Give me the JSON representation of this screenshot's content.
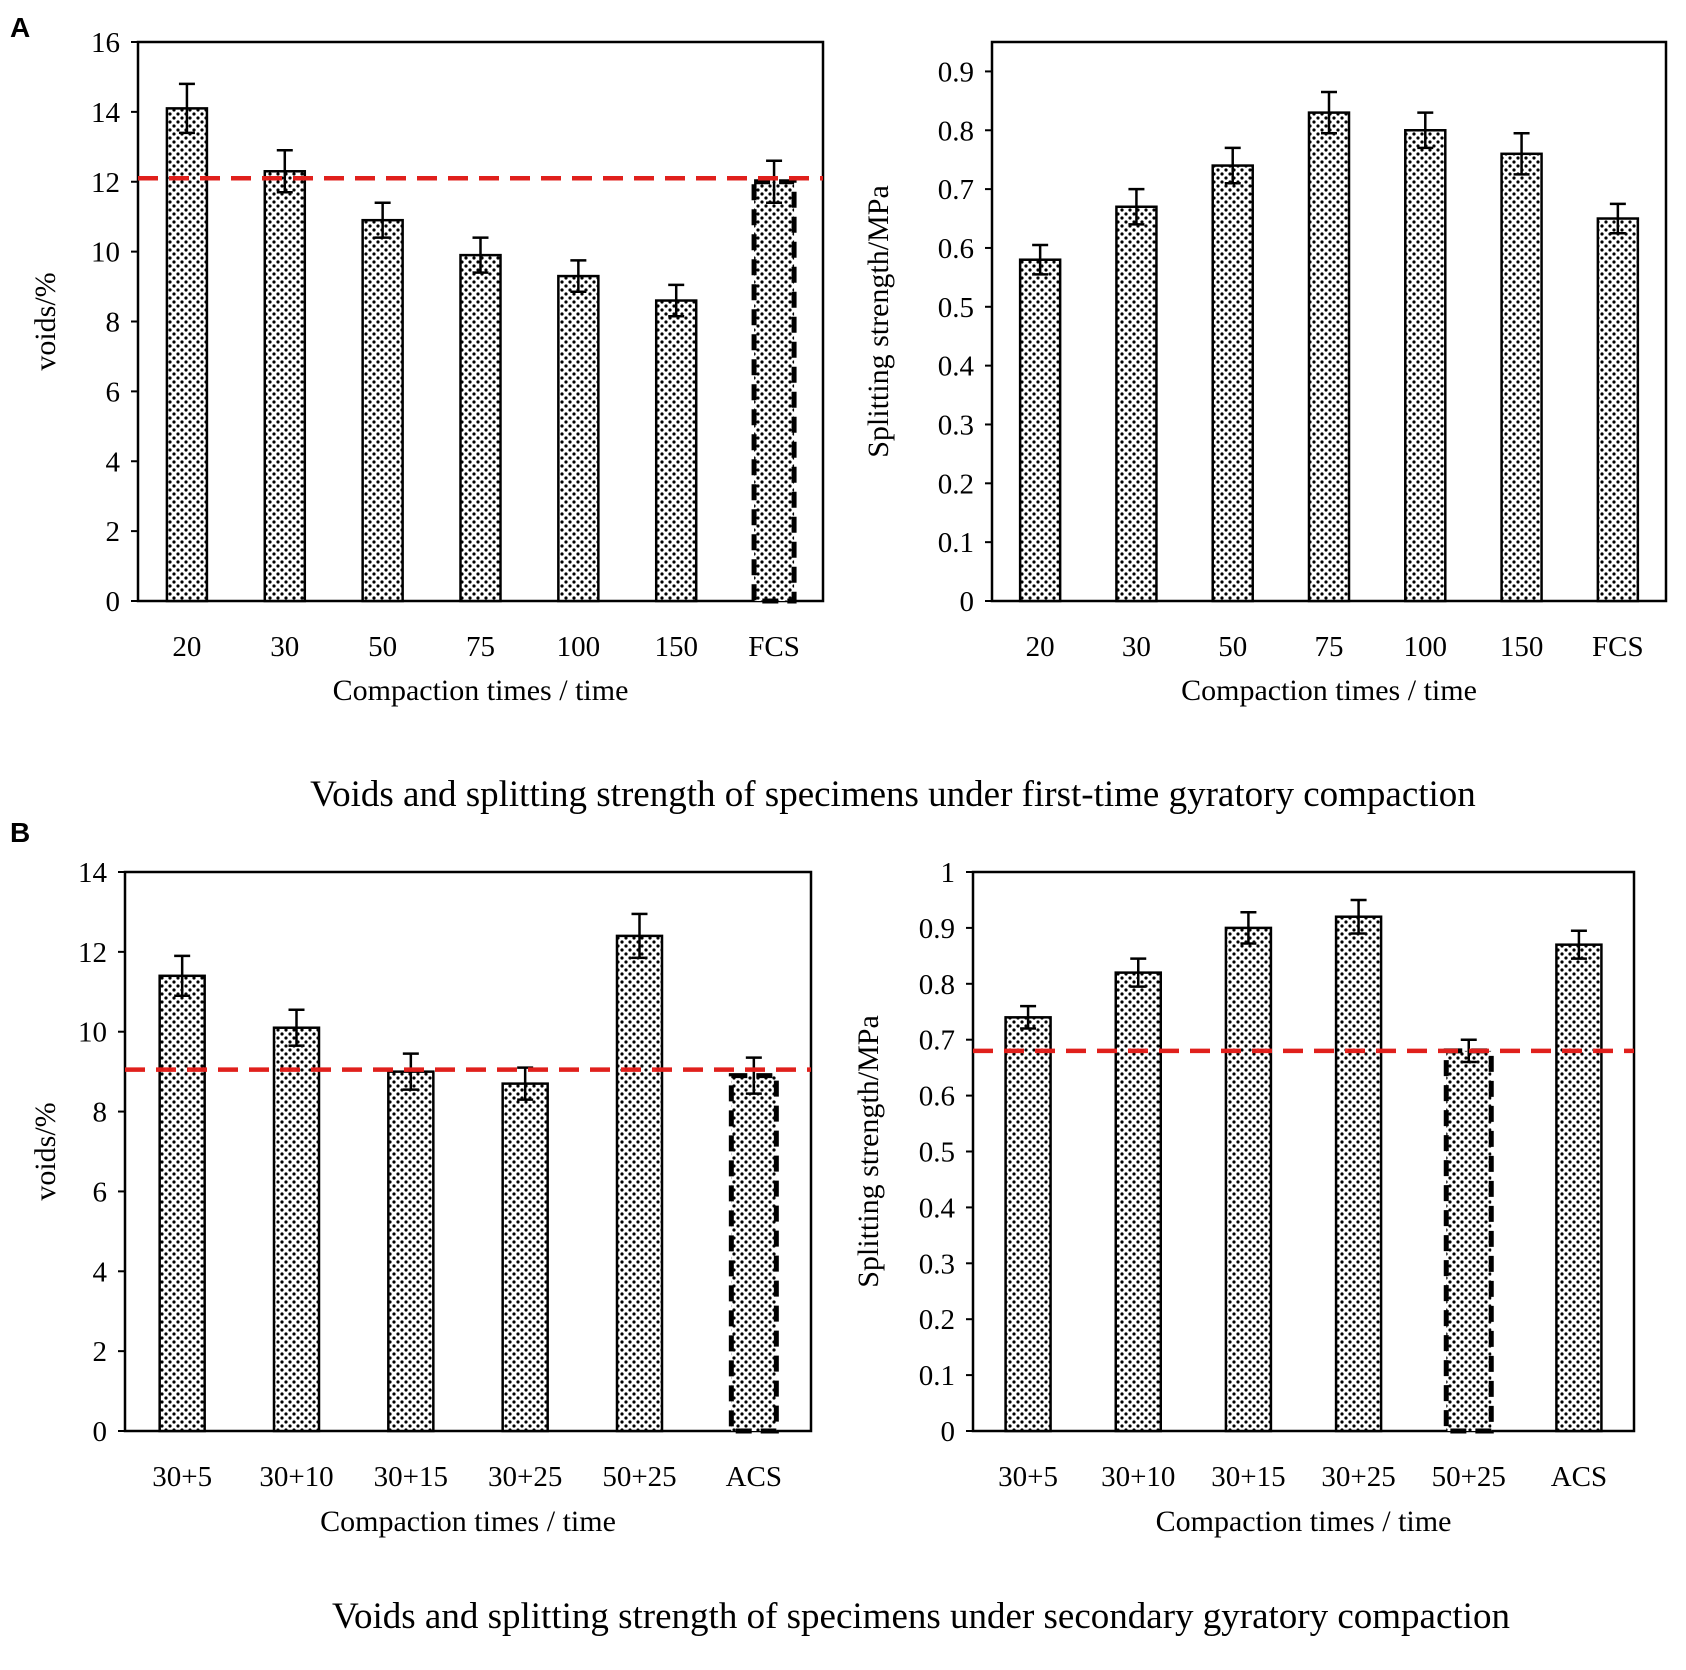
{
  "panels": [
    {
      "label": "A",
      "caption": "Voids and splitting strength of specimens under first-time gyratory compaction"
    },
    {
      "label": "B",
      "caption": "Voids and splitting strength of specimens under secondary gyratory compaction"
    }
  ],
  "colors": {
    "bar_fill": "#ffffff",
    "bar_pattern": "#000000",
    "reference_line": "#e0201c",
    "axis": "#000000"
  },
  "chart_data": [
    {
      "type": "bar",
      "panel": "A",
      "title": "",
      "xlabel": "Compaction times  / time",
      "ylabel": "voids/%",
      "categories": [
        "20",
        "30",
        "50",
        "75",
        "100",
        "150",
        "FCS"
      ],
      "values": [
        14.1,
        12.3,
        10.9,
        9.9,
        9.3,
        8.6,
        12.0
      ],
      "errors": [
        0.7,
        0.6,
        0.5,
        0.5,
        0.45,
        0.45,
        0.6
      ],
      "dashed_bars": [
        "FCS"
      ],
      "reference_line": 12.1,
      "ylim": [
        0,
        16
      ],
      "yticks": [
        "0",
        "2",
        "4",
        "6",
        "8",
        "10",
        "12",
        "14",
        "16"
      ]
    },
    {
      "type": "bar",
      "panel": "A",
      "title": "",
      "xlabel": "Compaction times  / time",
      "ylabel": "Splitting strength/MPa",
      "categories": [
        "20",
        "30",
        "50",
        "75",
        "100",
        "150",
        "FCS"
      ],
      "values": [
        0.58,
        0.67,
        0.74,
        0.83,
        0.8,
        0.76,
        0.65
      ],
      "errors": [
        0.025,
        0.03,
        0.03,
        0.035,
        0.03,
        0.035,
        0.025
      ],
      "dashed_bars": [],
      "reference_line": null,
      "ylim": [
        0,
        0.95
      ],
      "yticks": [
        "0",
        "0.1",
        "0.2",
        "0.3",
        "0.4",
        "0.5",
        "0.6",
        "0.7",
        "0.8",
        "0.9"
      ]
    },
    {
      "type": "bar",
      "panel": "B",
      "title": "",
      "xlabel": "Compaction times  / time",
      "ylabel": "voids/%",
      "categories": [
        "30+5",
        "30+10",
        "30+15",
        "30+25",
        "50+25",
        "ACS"
      ],
      "values": [
        11.4,
        10.1,
        9.0,
        8.7,
        12.4,
        8.9
      ],
      "errors": [
        0.5,
        0.45,
        0.45,
        0.4,
        0.55,
        0.45
      ],
      "dashed_bars": [
        "ACS"
      ],
      "reference_line": 9.05,
      "ylim": [
        0,
        14
      ],
      "yticks": [
        "0",
        "2",
        "4",
        "6",
        "8",
        "10",
        "12",
        "14"
      ]
    },
    {
      "type": "bar",
      "panel": "B",
      "title": "",
      "xlabel": "Compaction times  / time",
      "ylabel": "Splitting  strength/MPa",
      "categories": [
        "30+5",
        "30+10",
        "30+15",
        "30+25",
        "50+25",
        "ACS"
      ],
      "values": [
        0.74,
        0.82,
        0.9,
        0.92,
        0.68,
        0.87
      ],
      "errors": [
        0.02,
        0.025,
        0.028,
        0.03,
        0.02,
        0.025
      ],
      "dashed_bars": [
        "50+25"
      ],
      "reference_line": 0.68,
      "ylim": [
        0,
        1
      ],
      "yticks": [
        "0",
        "0.1",
        "0.2",
        "0.3",
        "0.4",
        "0.5",
        "0.6",
        "0.7",
        "0.8",
        "0.9",
        "1"
      ]
    }
  ]
}
